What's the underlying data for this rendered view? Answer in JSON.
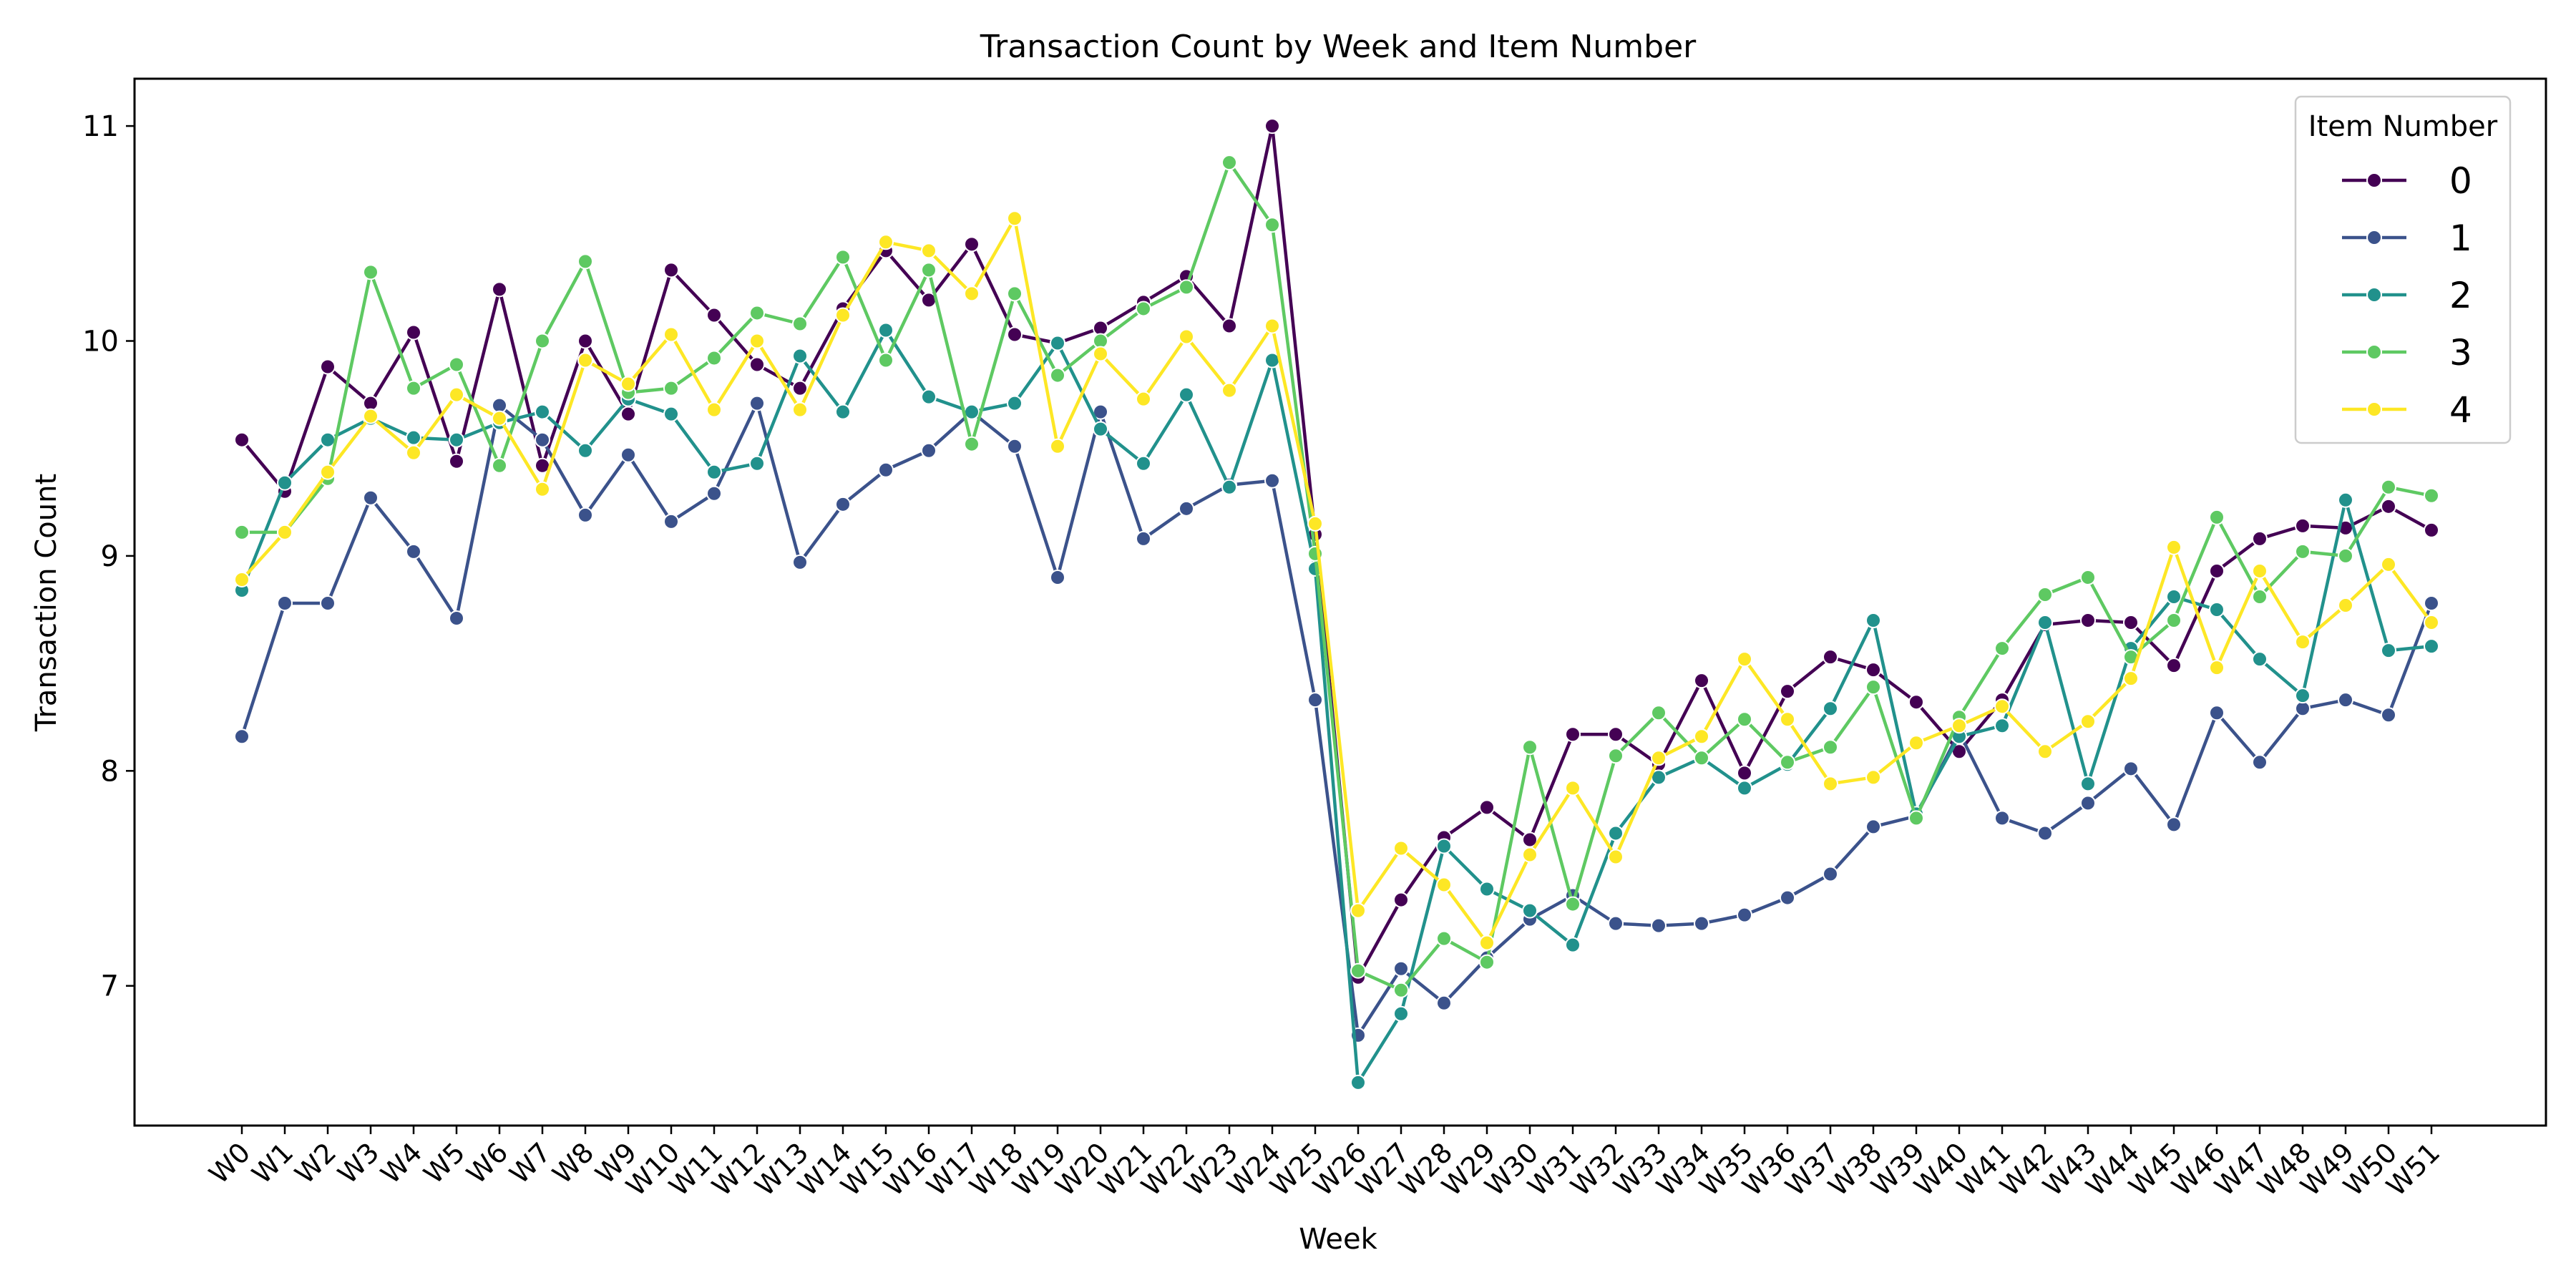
{
  "chart_data": {
    "type": "line",
    "title": "Transaction Count by Week and Item Number",
    "xlabel": "Week",
    "ylabel": "Transaction Count",
    "ylim": [
      6.35,
      11.22
    ],
    "yticks": [
      7,
      8,
      9,
      10,
      11
    ],
    "grid": false,
    "legend": {
      "title": "Item Number",
      "placement": "top-right"
    },
    "categories": [
      "W0",
      "W1",
      "W2",
      "W3",
      "W4",
      "W5",
      "W6",
      "W7",
      "W8",
      "W9",
      "W10",
      "W11",
      "W12",
      "W13",
      "W14",
      "W15",
      "W16",
      "W17",
      "W18",
      "W19",
      "W20",
      "W21",
      "W22",
      "W23",
      "W24",
      "W25",
      "W26",
      "W27",
      "W28",
      "W29",
      "W30",
      "W31",
      "W32",
      "W33",
      "W34",
      "W35",
      "W36",
      "W37",
      "W38",
      "W39",
      "W40",
      "W41",
      "W42",
      "W43",
      "W44",
      "W45",
      "W46",
      "W47",
      "W48",
      "W49",
      "W50",
      "W51"
    ],
    "series": [
      {
        "name": "0",
        "color": "#440154",
        "values": [
          9.54,
          9.3,
          9.88,
          9.71,
          10.04,
          9.44,
          10.24,
          9.42,
          10.0,
          9.66,
          10.33,
          10.12,
          9.89,
          9.78,
          10.15,
          10.42,
          10.19,
          10.45,
          10.03,
          9.99,
          10.06,
          10.18,
          10.3,
          10.07,
          11.0,
          9.1,
          7.04,
          7.4,
          7.69,
          7.83,
          7.68,
          8.17,
          8.17,
          8.03,
          8.42,
          7.99,
          8.37,
          8.53,
          8.47,
          8.32,
          8.09,
          8.33,
          8.68,
          8.7,
          8.69,
          8.49,
          8.93,
          9.08,
          9.14,
          9.13,
          9.23,
          9.12
        ]
      },
      {
        "name": "1",
        "color": "#3b528b",
        "values": [
          8.16,
          8.78,
          8.78,
          9.27,
          9.02,
          8.71,
          9.7,
          9.54,
          9.19,
          9.47,
          9.16,
          9.29,
          9.71,
          8.97,
          9.24,
          9.4,
          9.49,
          9.67,
          9.51,
          8.9,
          9.67,
          9.08,
          9.22,
          9.33,
          9.35,
          8.33,
          6.77,
          7.08,
          6.92,
          7.13,
          7.31,
          7.42,
          7.29,
          7.28,
          7.29,
          7.33,
          7.41,
          7.52,
          7.74,
          7.79,
          8.18,
          7.78,
          7.71,
          7.85,
          8.01,
          7.75,
          8.27,
          8.04,
          8.29,
          8.33,
          8.26,
          8.78
        ]
      },
      {
        "name": "2",
        "color": "#21918c",
        "values": [
          8.84,
          9.34,
          9.54,
          9.64,
          9.55,
          9.54,
          9.62,
          9.67,
          9.49,
          9.73,
          9.66,
          9.39,
          9.43,
          9.93,
          9.67,
          10.05,
          9.74,
          9.67,
          9.71,
          9.99,
          9.59,
          9.43,
          9.75,
          9.32,
          9.91,
          8.94,
          6.55,
          6.87,
          7.65,
          7.45,
          7.35,
          7.19,
          7.71,
          7.97,
          8.06,
          7.92,
          8.03,
          8.29,
          8.7,
          7.8,
          8.16,
          8.21,
          8.69,
          7.94,
          8.57,
          8.81,
          8.75,
          8.52,
          8.35,
          9.26,
          8.56,
          8.58
        ]
      },
      {
        "name": "3",
        "color": "#5ec962",
        "values": [
          9.11,
          9.11,
          9.36,
          10.32,
          9.78,
          9.89,
          9.42,
          10.0,
          10.37,
          9.76,
          9.78,
          9.92,
          10.13,
          10.08,
          10.39,
          9.91,
          10.33,
          9.52,
          10.22,
          9.84,
          10.0,
          10.15,
          10.25,
          10.83,
          10.54,
          9.01,
          7.07,
          6.98,
          7.22,
          7.11,
          8.11,
          7.38,
          8.07,
          8.27,
          8.06,
          8.24,
          8.04,
          8.11,
          8.39,
          7.78,
          8.25,
          8.57,
          8.82,
          8.9,
          8.53,
          8.7,
          9.18,
          8.81,
          9.02,
          9.0,
          9.32,
          9.28
        ]
      },
      {
        "name": "4",
        "color": "#fde725",
        "values": [
          8.89,
          9.11,
          9.39,
          9.65,
          9.48,
          9.75,
          9.64,
          9.31,
          9.91,
          9.8,
          10.03,
          9.68,
          10.0,
          9.68,
          10.12,
          10.46,
          10.42,
          10.22,
          10.57,
          9.51,
          9.94,
          9.73,
          10.02,
          9.77,
          10.07,
          9.15,
          7.35,
          7.64,
          7.47,
          7.2,
          7.61,
          7.92,
          7.6,
          8.06,
          8.16,
          8.52,
          8.24,
          7.94,
          7.97,
          8.13,
          8.21,
          8.3,
          8.09,
          8.23,
          8.43,
          9.04,
          8.48,
          8.93,
          8.6,
          8.77,
          8.96,
          8.69
        ]
      }
    ]
  }
}
